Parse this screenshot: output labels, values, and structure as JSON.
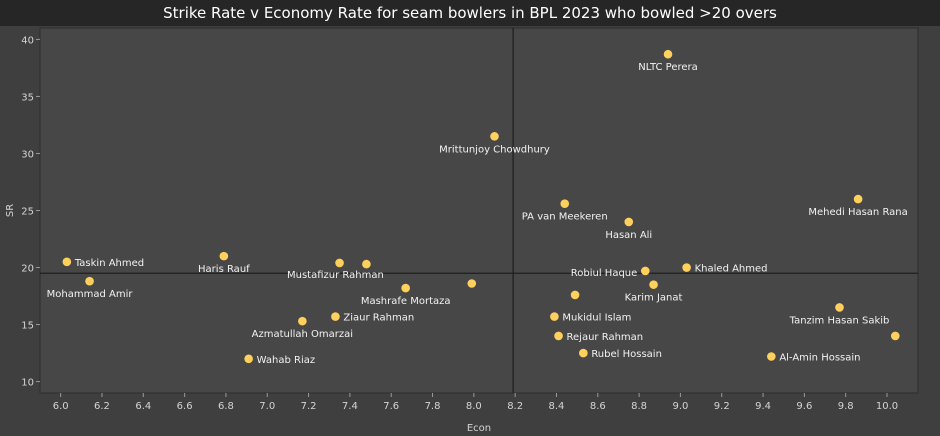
{
  "chart_data": {
    "type": "scatter",
    "title": "Strike Rate v Economy Rate for seam bowlers in BPL 2023 who bowled >20 overs",
    "xlabel": "Econ",
    "ylabel": "SR",
    "xlim": [
      5.9,
      10.15
    ],
    "ylim": [
      9,
      41
    ],
    "x_ticks": [
      "6.0",
      "6.2",
      "6.4",
      "6.6",
      "6.8",
      "7.0",
      "7.2",
      "7.4",
      "7.6",
      "7.8",
      "8.0",
      "8.2",
      "8.4",
      "8.6",
      "8.8",
      "9.0",
      "9.2",
      "9.4",
      "9.6",
      "9.8",
      "10.0"
    ],
    "y_ticks": [
      "10",
      "15",
      "20",
      "25",
      "30",
      "35",
      "40"
    ],
    "reference_lines": {
      "x": 8.19,
      "y": 19.5
    },
    "grid": false,
    "point_color": "#ffd15c",
    "points": [
      {
        "x": 8.94,
        "y": 38.7,
        "label": "NLTC Perera",
        "anchor": "middle",
        "pos": "below"
      },
      {
        "x": 8.1,
        "y": 31.5,
        "label": "Mrittunjoy Chowdhury",
        "anchor": "middle",
        "pos": "below"
      },
      {
        "x": 9.86,
        "y": 26.0,
        "label": "Mehedi Hasan Rana",
        "anchor": "middle",
        "pos": "below"
      },
      {
        "x": 8.44,
        "y": 25.6,
        "label": "PA van Meekeren",
        "anchor": "middle",
        "pos": "below"
      },
      {
        "x": 8.75,
        "y": 24.0,
        "label": "Hasan Ali",
        "anchor": "middle",
        "pos": "below"
      },
      {
        "x": 6.79,
        "y": 21.0,
        "label": "Haris Rauf",
        "anchor": "middle",
        "pos": "below"
      },
      {
        "x": 6.03,
        "y": 20.5,
        "label": "Taskin Ahmed",
        "anchor": "start",
        "pos": "right"
      },
      {
        "x": 7.35,
        "y": 20.4,
        "label": "",
        "anchor": "start",
        "pos": "none"
      },
      {
        "x": 7.48,
        "y": 20.3,
        "label": "Mustafizur Rahman",
        "anchor": "middle",
        "pos": "below-left"
      },
      {
        "x": 9.03,
        "y": 20.0,
        "label": "Khaled Ahmed",
        "anchor": "start",
        "pos": "right"
      },
      {
        "x": 8.83,
        "y": 19.7,
        "label": "Robiul Haque",
        "anchor": "end",
        "pos": "left"
      },
      {
        "x": 6.14,
        "y": 18.8,
        "label": "Mohammad Amir",
        "anchor": "middle",
        "pos": "below"
      },
      {
        "x": 7.99,
        "y": 18.6,
        "label": "",
        "anchor": "start",
        "pos": "none"
      },
      {
        "x": 8.87,
        "y": 18.5,
        "label": "Karim Janat",
        "anchor": "middle",
        "pos": "below"
      },
      {
        "x": 7.67,
        "y": 18.2,
        "label": "Mashrafe Mortaza",
        "anchor": "middle",
        "pos": "below"
      },
      {
        "x": 8.49,
        "y": 17.6,
        "label": "",
        "anchor": "start",
        "pos": "none"
      },
      {
        "x": 9.77,
        "y": 16.5,
        "label": "Tanzim Hasan Sakib",
        "anchor": "middle",
        "pos": "below"
      },
      {
        "x": 7.33,
        "y": 15.7,
        "label": "Ziaur Rahman",
        "anchor": "start",
        "pos": "right"
      },
      {
        "x": 8.39,
        "y": 15.7,
        "label": "Mukidul Islam",
        "anchor": "start",
        "pos": "right"
      },
      {
        "x": 7.17,
        "y": 15.3,
        "label": "Azmatullah Omarzai",
        "anchor": "middle",
        "pos": "below"
      },
      {
        "x": 8.41,
        "y": 14.0,
        "label": "Rejaur Rahman",
        "anchor": "start",
        "pos": "right"
      },
      {
        "x": 10.04,
        "y": 14.0,
        "label": "",
        "anchor": "start",
        "pos": "none"
      },
      {
        "x": 8.53,
        "y": 12.5,
        "label": "Rubel Hossain",
        "anchor": "start",
        "pos": "right"
      },
      {
        "x": 9.44,
        "y": 12.2,
        "label": "Al-Amin Hossain",
        "anchor": "start",
        "pos": "right"
      },
      {
        "x": 6.91,
        "y": 12.0,
        "label": "Wahab Riaz",
        "anchor": "start",
        "pos": "right"
      }
    ]
  }
}
